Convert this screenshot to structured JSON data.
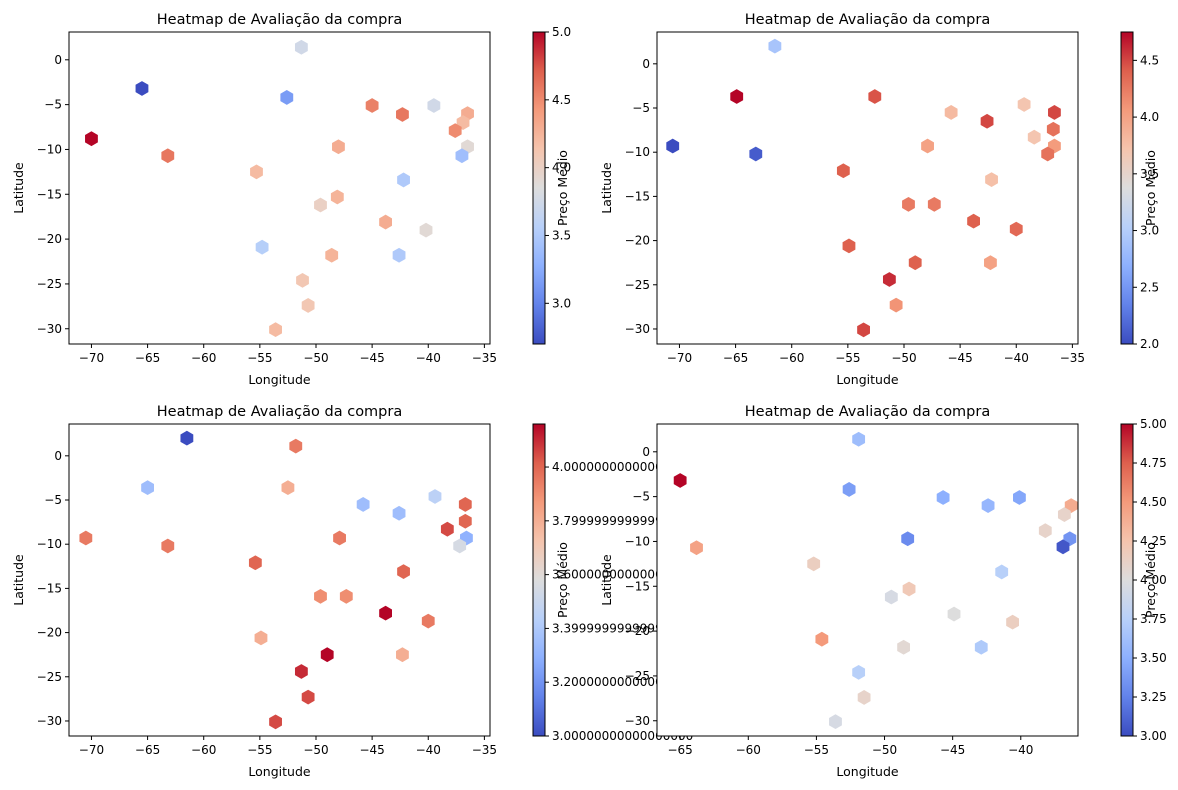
{
  "chart_data": [
    {
      "type": "heatmap",
      "subtype": "hexbin",
      "title": "Heatmap de Avaliação da compra",
      "xlabel": "Longitude",
      "ylabel": "Latitude",
      "colorbar_label": "Preço Médio",
      "colormap": "coolwarm",
      "xlim": [
        -72,
        -34.5
      ],
      "ylim": [
        -31.7,
        3.1
      ],
      "clim": [
        2.7,
        5.0
      ],
      "x_ticks": [
        -70,
        -65,
        -60,
        -55,
        -50,
        -45,
        -40,
        -35
      ],
      "y_ticks": [
        0,
        -5,
        -10,
        -15,
        -20,
        -25,
        -30
      ],
      "colorbar_ticks": [
        3.0,
        3.5,
        4.0,
        4.5,
        5.0
      ],
      "grid": false,
      "points": [
        {
          "x": -51.3,
          "y": 1.4,
          "value": 3.75
        },
        {
          "x": -65.5,
          "y": -3.2,
          "value": 2.7
        },
        {
          "x": -52.6,
          "y": -4.2,
          "value": 3.15
        },
        {
          "x": -45.0,
          "y": -5.1,
          "value": 4.55
        },
        {
          "x": -42.3,
          "y": -6.1,
          "value": 4.6
        },
        {
          "x": -39.5,
          "y": -5.1,
          "value": 3.75
        },
        {
          "x": -36.5,
          "y": -6.0,
          "value": 4.3
        },
        {
          "x": -36.9,
          "y": -7.0,
          "value": 4.2
        },
        {
          "x": -37.6,
          "y": -7.9,
          "value": 4.5
        },
        {
          "x": -70.0,
          "y": -8.8,
          "value": 5.0
        },
        {
          "x": -36.5,
          "y": -9.7,
          "value": 3.9
        },
        {
          "x": -48.0,
          "y": -9.7,
          "value": 4.3
        },
        {
          "x": -37.0,
          "y": -10.7,
          "value": 3.4
        },
        {
          "x": -63.2,
          "y": -10.7,
          "value": 4.6
        },
        {
          "x": -55.3,
          "y": -12.5,
          "value": 4.2
        },
        {
          "x": -42.2,
          "y": -13.4,
          "value": 3.5
        },
        {
          "x": -48.1,
          "y": -15.3,
          "value": 4.25
        },
        {
          "x": -49.6,
          "y": -16.2,
          "value": 4.0
        },
        {
          "x": -43.8,
          "y": -18.1,
          "value": 4.3
        },
        {
          "x": -40.2,
          "y": -19.0,
          "value": 3.9
        },
        {
          "x": -54.8,
          "y": -20.9,
          "value": 3.55
        },
        {
          "x": -48.6,
          "y": -21.8,
          "value": 4.25
        },
        {
          "x": -42.6,
          "y": -21.8,
          "value": 3.5
        },
        {
          "x": -51.2,
          "y": -24.6,
          "value": 4.1
        },
        {
          "x": -50.7,
          "y": -27.4,
          "value": 4.1
        },
        {
          "x": -53.6,
          "y": -30.1,
          "value": 4.2
        }
      ]
    },
    {
      "type": "heatmap",
      "subtype": "hexbin",
      "title": "Heatmap de Avaliação da compra",
      "xlabel": "Longitude",
      "ylabel": "Latitude",
      "colorbar_label": "Preço Médio",
      "colormap": "coolwarm",
      "xlim": [
        -72,
        -34.5
      ],
      "ylim": [
        -31.7,
        3.6
      ],
      "clim": [
        2.0,
        4.75
      ],
      "x_ticks": [
        -70,
        -65,
        -60,
        -55,
        -50,
        -45,
        -40,
        -35
      ],
      "y_ticks": [
        0,
        -5,
        -10,
        -15,
        -20,
        -25,
        -30
      ],
      "colorbar_ticks": [
        2.0,
        2.5,
        3.0,
        3.5,
        4.0,
        4.5
      ],
      "grid": false,
      "points": [
        {
          "x": -61.5,
          "y": 2.0,
          "value": 2.9
        },
        {
          "x": -64.9,
          "y": -3.7,
          "value": 4.75
        },
        {
          "x": -52.6,
          "y": -3.7,
          "value": 4.45
        },
        {
          "x": -45.8,
          "y": -5.5,
          "value": 3.8
        },
        {
          "x": -42.6,
          "y": -6.5,
          "value": 4.5
        },
        {
          "x": -39.3,
          "y": -4.6,
          "value": 3.7
        },
        {
          "x": -36.6,
          "y": -5.5,
          "value": 4.5
        },
        {
          "x": -36.7,
          "y": -7.4,
          "value": 4.3
        },
        {
          "x": -38.4,
          "y": -8.3,
          "value": 3.7
        },
        {
          "x": -70.6,
          "y": -9.3,
          "value": 2.0
        },
        {
          "x": -36.6,
          "y": -9.3,
          "value": 4.05
        },
        {
          "x": -47.9,
          "y": -9.3,
          "value": 4.0
        },
        {
          "x": -37.2,
          "y": -10.2,
          "value": 4.3
        },
        {
          "x": -63.2,
          "y": -10.2,
          "value": 2.1
        },
        {
          "x": -55.4,
          "y": -12.1,
          "value": 4.4
        },
        {
          "x": -42.2,
          "y": -13.1,
          "value": 3.75
        },
        {
          "x": -49.6,
          "y": -15.9,
          "value": 4.25
        },
        {
          "x": -47.3,
          "y": -15.9,
          "value": 4.25
        },
        {
          "x": -43.8,
          "y": -17.8,
          "value": 4.4
        },
        {
          "x": -40.0,
          "y": -18.7,
          "value": 4.35
        },
        {
          "x": -54.9,
          "y": -20.6,
          "value": 4.4
        },
        {
          "x": -49.0,
          "y": -22.5,
          "value": 4.4
        },
        {
          "x": -42.3,
          "y": -22.5,
          "value": 4.0
        },
        {
          "x": -51.3,
          "y": -24.4,
          "value": 4.6
        },
        {
          "x": -50.7,
          "y": -27.3,
          "value": 4.1
        },
        {
          "x": -53.6,
          "y": -30.1,
          "value": 4.5
        }
      ]
    },
    {
      "type": "heatmap",
      "subtype": "hexbin",
      "title": "Heatmap de Avaliação da compra",
      "xlabel": "Longitude",
      "ylabel": "Latitude",
      "colorbar_label": "Preço Médio",
      "colormap": "coolwarm",
      "xlim": [
        -72,
        -34.5
      ],
      "ylim": [
        -31.7,
        3.6
      ],
      "clim": [
        3.0,
        4.16
      ],
      "x_ticks": [
        -70,
        -65,
        -60,
        -55,
        -50,
        -45,
        -40,
        -35
      ],
      "y_ticks": [
        0,
        -5,
        -10,
        -15,
        -20,
        -25,
        -30
      ],
      "colorbar_ticks": [
        3.0,
        3.2,
        3.4,
        3.6,
        3.8,
        4.0
      ],
      "grid": false,
      "points": [
        {
          "x": -61.5,
          "y": 2.0,
          "value": 3.0
        },
        {
          "x": -51.8,
          "y": 1.1,
          "value": 3.95
        },
        {
          "x": -65.0,
          "y": -3.6,
          "value": 3.35
        },
        {
          "x": -52.5,
          "y": -3.6,
          "value": 3.8
        },
        {
          "x": -45.8,
          "y": -5.5,
          "value": 3.35
        },
        {
          "x": -42.6,
          "y": -6.5,
          "value": 3.35
        },
        {
          "x": -39.4,
          "y": -4.6,
          "value": 3.45
        },
        {
          "x": -36.7,
          "y": -5.5,
          "value": 4.0
        },
        {
          "x": -36.7,
          "y": -7.4,
          "value": 4.0
        },
        {
          "x": -38.3,
          "y": -8.3,
          "value": 4.05
        },
        {
          "x": -70.5,
          "y": -9.3,
          "value": 3.95
        },
        {
          "x": -36.6,
          "y": -9.3,
          "value": 3.3
        },
        {
          "x": -47.9,
          "y": -9.3,
          "value": 3.95
        },
        {
          "x": -37.2,
          "y": -10.2,
          "value": 3.55
        },
        {
          "x": -63.2,
          "y": -10.2,
          "value": 3.95
        },
        {
          "x": -55.4,
          "y": -12.1,
          "value": 4.0
        },
        {
          "x": -42.2,
          "y": -13.1,
          "value": 4.0
        },
        {
          "x": -49.6,
          "y": -15.9,
          "value": 3.9
        },
        {
          "x": -47.3,
          "y": -15.9,
          "value": 3.9
        },
        {
          "x": -43.8,
          "y": -17.8,
          "value": 4.16
        },
        {
          "x": -40.0,
          "y": -18.7,
          "value": 3.95
        },
        {
          "x": -54.9,
          "y": -20.6,
          "value": 3.8
        },
        {
          "x": -49.0,
          "y": -22.5,
          "value": 4.16
        },
        {
          "x": -42.3,
          "y": -22.5,
          "value": 3.8
        },
        {
          "x": -51.3,
          "y": -24.4,
          "value": 4.1
        },
        {
          "x": -50.7,
          "y": -27.3,
          "value": 4.05
        },
        {
          "x": -53.6,
          "y": -30.1,
          "value": 4.05
        }
      ]
    },
    {
      "type": "heatmap",
      "subtype": "hexbin",
      "title": "Heatmap de Avaliação da compra",
      "xlabel": "Longitude",
      "ylabel": "Latitude",
      "colorbar_label": "Preço Médio",
      "colormap": "coolwarm",
      "xlim": [
        -66.7,
        -35.8
      ],
      "ylim": [
        -31.7,
        3.1
      ],
      "clim": [
        3.0,
        5.0
      ],
      "x_ticks": [
        -65,
        -60,
        -55,
        -50,
        -45,
        -40
      ],
      "y_ticks": [
        0,
        -5,
        -10,
        -15,
        -20,
        -25,
        -30
      ],
      "colorbar_ticks": [
        3.0,
        3.25,
        3.5,
        3.75,
        4.0,
        4.25,
        4.5,
        4.75,
        5.0
      ],
      "grid": false,
      "points": [
        {
          "x": -51.9,
          "y": 1.4,
          "value": 3.6
        },
        {
          "x": -65.0,
          "y": -3.2,
          "value": 5.0
        },
        {
          "x": -52.6,
          "y": -4.2,
          "value": 3.4
        },
        {
          "x": -45.7,
          "y": -5.1,
          "value": 3.5
        },
        {
          "x": -42.4,
          "y": -6.0,
          "value": 3.55
        },
        {
          "x": -40.1,
          "y": -5.1,
          "value": 3.45
        },
        {
          "x": -36.3,
          "y": -6.0,
          "value": 4.4
        },
        {
          "x": -36.8,
          "y": -7.0,
          "value": 4.1
        },
        {
          "x": -38.2,
          "y": -8.8,
          "value": 4.1
        },
        {
          "x": -63.8,
          "y": -10.7,
          "value": 4.45
        },
        {
          "x": -36.4,
          "y": -9.7,
          "value": 3.35
        },
        {
          "x": -48.3,
          "y": -9.7,
          "value": 3.3
        },
        {
          "x": -36.9,
          "y": -10.6,
          "value": 3.05
        },
        {
          "x": -55.2,
          "y": -12.5,
          "value": 4.15
        },
        {
          "x": -41.4,
          "y": -13.4,
          "value": 3.75
        },
        {
          "x": -48.2,
          "y": -15.3,
          "value": 4.2
        },
        {
          "x": -49.5,
          "y": -16.2,
          "value": 3.95
        },
        {
          "x": -44.9,
          "y": -18.1,
          "value": 4.0
        },
        {
          "x": -40.6,
          "y": -19.0,
          "value": 4.15
        },
        {
          "x": -54.6,
          "y": -20.9,
          "value": 4.5
        },
        {
          "x": -48.6,
          "y": -21.8,
          "value": 4.05
        },
        {
          "x": -42.9,
          "y": -21.8,
          "value": 3.7
        },
        {
          "x": -51.9,
          "y": -24.6,
          "value": 3.75
        },
        {
          "x": -51.5,
          "y": -27.4,
          "value": 4.1
        },
        {
          "x": -53.6,
          "y": -30.1,
          "value": 3.95
        }
      ]
    }
  ]
}
